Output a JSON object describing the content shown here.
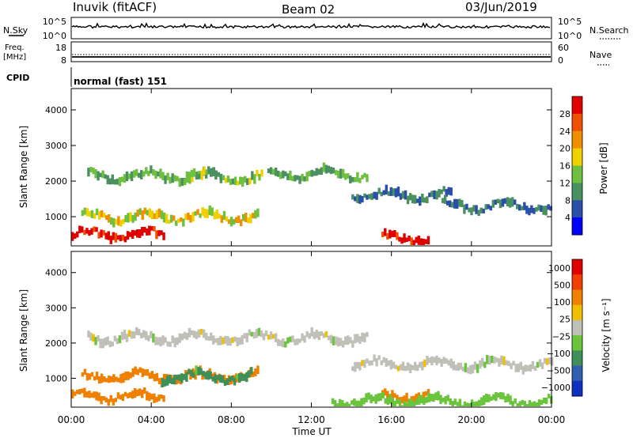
{
  "header": {
    "station": "Inuvik (fitACF)",
    "beam": "Beam 02",
    "date": "03/Jun/2019"
  },
  "nsky_panel": {
    "left_label": "N.Sky",
    "left_ticks": [
      "10^5",
      "10^0"
    ],
    "right_ticks": [
      "10^5",
      "10^0"
    ],
    "right_label": "N.Search"
  },
  "freq_panel": {
    "left_label_1": "Freq.",
    "left_label_2": "[MHz]",
    "left_ticks": [
      "18",
      "8"
    ],
    "right_ticks": [
      "60",
      "0"
    ],
    "right_label": "Nave"
  },
  "cpid_panel": {
    "label": "CPID",
    "mode": "normal (fast) 151"
  },
  "chart_data": [
    {
      "type": "heatmap",
      "ylabel": "Slant Range [km]",
      "yticks": [
        "1000",
        "2000",
        "3000",
        "4000"
      ],
      "ylim": [
        180,
        4600
      ],
      "colorbar_label": "Power [dB]",
      "colorbar_ticks": [
        "4",
        "8",
        "12",
        "16",
        "20",
        "24",
        "28"
      ],
      "colorbar_colors": [
        "#0000ff",
        "#2a4fa8",
        "#4a9060",
        "#6fc040",
        "#f0d000",
        "#f09000",
        "#f05000",
        "#e00000"
      ],
      "bands": [
        {
          "t_start": 0.0,
          "t_end": 4.6,
          "range_km": 500,
          "value": 30
        },
        {
          "t_start": 0.5,
          "t_end": 9.3,
          "range_km": 1000,
          "value": 18
        },
        {
          "t_start": 0.8,
          "t_end": 7.5,
          "range_km": 2150,
          "value": 12
        },
        {
          "t_start": 5.5,
          "t_end": 9.5,
          "range_km": 2100,
          "value": 14
        },
        {
          "t_start": 9.8,
          "t_end": 14.8,
          "range_km": 2200,
          "value": 12
        },
        {
          "t_start": 14.0,
          "t_end": 19.0,
          "range_km": 1600,
          "value": 8
        },
        {
          "t_start": 15.5,
          "t_end": 17.8,
          "range_km": 400,
          "value": 30
        },
        {
          "t_start": 18.5,
          "t_end": 24.0,
          "range_km": 1300,
          "value": 8
        }
      ]
    },
    {
      "type": "heatmap",
      "ylabel": "Slant Range [km]",
      "yticks": [
        "1000",
        "2000",
        "3000",
        "4000"
      ],
      "ylim": [
        180,
        4600
      ],
      "colorbar_label": "Velocity [m s⁻¹]",
      "colorbar_ticks": [
        "1000",
        "500",
        "100",
        "25",
        "−25",
        "−100",
        "−500",
        "−1000"
      ],
      "colorbar_colors": [
        "#1030c0",
        "#2f5fb0",
        "#3e8f58",
        "#6ac43c",
        "#c0c0b8",
        "#f0c000",
        "#f08000",
        "#f04000",
        "#e00000"
      ],
      "bands": [
        {
          "t_start": 0.0,
          "t_end": 4.6,
          "range_km": 500,
          "value": -200
        },
        {
          "t_start": 0.5,
          "t_end": 9.3,
          "range_km": 1050,
          "value": -150
        },
        {
          "t_start": 4.5,
          "t_end": 9.0,
          "range_km": 1050,
          "value": 120
        },
        {
          "t_start": 0.8,
          "t_end": 14.8,
          "range_km": 2150,
          "value": 0
        },
        {
          "t_start": 14.0,
          "t_end": 24.0,
          "range_km": 1400,
          "value": 0
        },
        {
          "t_start": 15.5,
          "t_end": 17.8,
          "range_km": 500,
          "value": -300
        },
        {
          "t_start": 13.0,
          "t_end": 24.0,
          "range_km": 350,
          "value": 60
        }
      ]
    }
  ],
  "xaxis": {
    "ticks": [
      "00:00",
      "04:00",
      "08:00",
      "12:00",
      "16:00",
      "20:00",
      "00:00"
    ],
    "label": "Time UT"
  }
}
